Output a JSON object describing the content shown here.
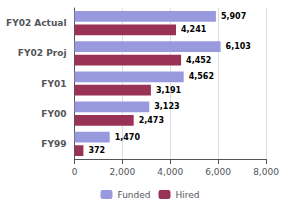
{
  "chart_data": {
    "type": "bar",
    "orientation": "horizontal",
    "categories": [
      "FY02 Actual",
      "FY02 Proj",
      "FY01",
      "FY00",
      "FY99"
    ],
    "series": [
      {
        "name": "Funded",
        "color": "#9999dd",
        "values": [
          5907,
          6103,
          4562,
          3123,
          1470
        ],
        "value_labels": [
          "5,907",
          "6,103",
          "4,562",
          "3,123",
          "1,470"
        ]
      },
      {
        "name": "Hired",
        "color": "#993355",
        "values": [
          4241,
          4452,
          3191,
          2473,
          372
        ],
        "value_labels": [
          "4,241",
          "4,452",
          "3,191",
          "2,473",
          "372"
        ]
      }
    ],
    "xlim": [
      0,
      8000
    ],
    "xticks": [
      0,
      {
        "value": 2000,
        "label": "2,000"
      },
      {
        "value": 4000,
        "label": "4,000"
      },
      {
        "value": 6000,
        "label": "6,000"
      },
      {
        "value": 8000,
        "label": "8,000"
      }
    ],
    "grid": true,
    "legend": "bottom",
    "data_labels": true
  }
}
